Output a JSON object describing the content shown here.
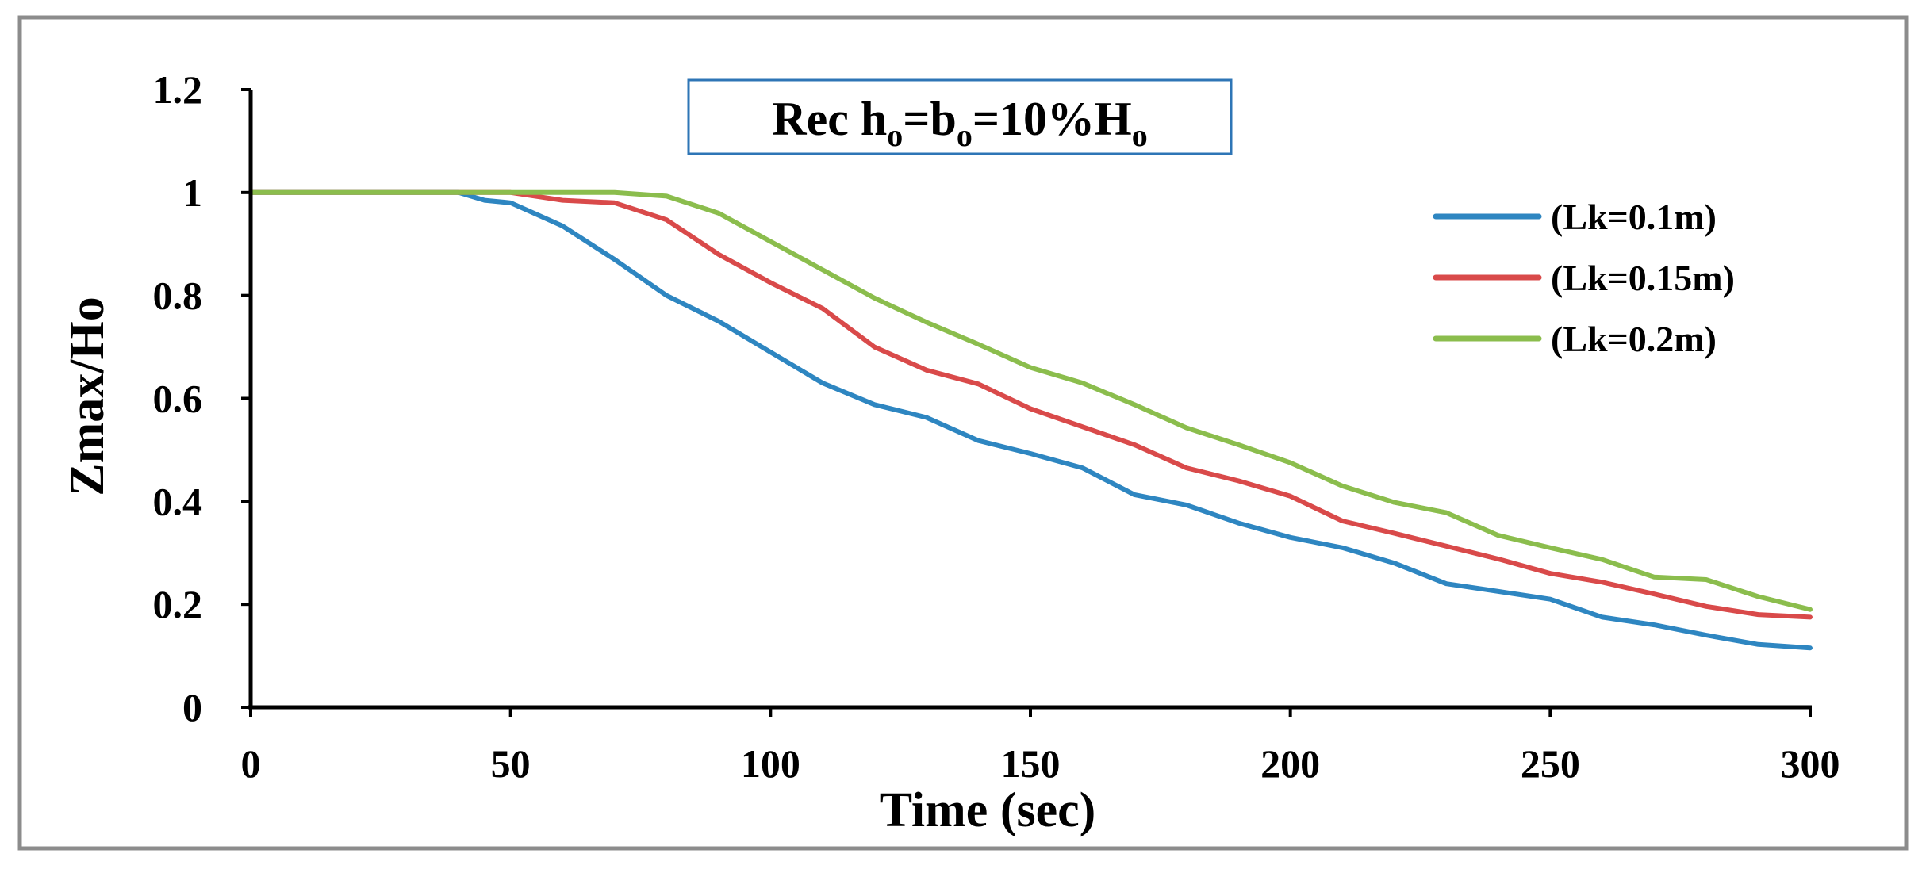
{
  "chart_data": {
    "type": "line",
    "title": {
      "prefix": "Rec h",
      "sub1": "o",
      "mid1": "=b",
      "sub2": "o",
      "mid2": "=10%H",
      "sub3": "o"
    },
    "xlabel": "Time (sec)",
    "ylabel": "Zmax/Ho",
    "xlim": [
      0,
      300
    ],
    "ylim": [
      0,
      1.2
    ],
    "xticks": [
      0,
      50,
      100,
      150,
      200,
      250,
      300
    ],
    "yticks": [
      0,
      0.2,
      0.4,
      0.6,
      0.8,
      1,
      1.2
    ],
    "ytick_labels": [
      "0",
      "0.2",
      "0.4",
      "0.6",
      "0.8",
      "1",
      "1.2"
    ],
    "xtick_labels": [
      "0",
      "50",
      "100",
      "150",
      "200",
      "250",
      "300"
    ],
    "legend_position": "right",
    "x": [
      0,
      10,
      20,
      30,
      40,
      45,
      50,
      60,
      70,
      80,
      90,
      100,
      110,
      120,
      130,
      140,
      150,
      160,
      170,
      180,
      190,
      200,
      210,
      220,
      230,
      240,
      250,
      260,
      270,
      280,
      290,
      300
    ],
    "series": [
      {
        "name": "(Lk=0.1m)",
        "color": "#2e86c1",
        "values": [
          1,
          1,
          1,
          1,
          1,
          0.985,
          0.98,
          0.935,
          0.87,
          0.8,
          0.75,
          0.69,
          0.63,
          0.588,
          0.563,
          0.518,
          0.493,
          0.465,
          0.413,
          0.393,
          0.358,
          0.33,
          0.31,
          0.28,
          0.24,
          0.225,
          0.21,
          0.175,
          0.16,
          0.14,
          0.122,
          0.115
        ]
      },
      {
        "name": "(Lk=0.15m)",
        "color": "#d94a4a",
        "values": [
          1,
          1,
          1,
          1,
          1,
          1,
          1,
          0.985,
          0.98,
          0.947,
          0.88,
          0.825,
          0.775,
          0.7,
          0.655,
          0.628,
          0.58,
          0.545,
          0.51,
          0.465,
          0.44,
          0.41,
          0.362,
          0.338,
          0.313,
          0.288,
          0.26,
          0.243,
          0.22,
          0.196,
          0.18,
          0.175
        ]
      },
      {
        "name": "(Lk=0.2m)",
        "color": "#8bbd4d",
        "values": [
          1,
          1,
          1,
          1,
          1,
          1,
          1,
          1,
          1,
          0.993,
          0.96,
          0.905,
          0.85,
          0.795,
          0.748,
          0.705,
          0.66,
          0.63,
          0.588,
          0.543,
          0.51,
          0.475,
          0.43,
          0.398,
          0.378,
          0.334,
          0.31,
          0.287,
          0.253,
          0.248,
          0.215,
          0.19
        ]
      }
    ]
  }
}
